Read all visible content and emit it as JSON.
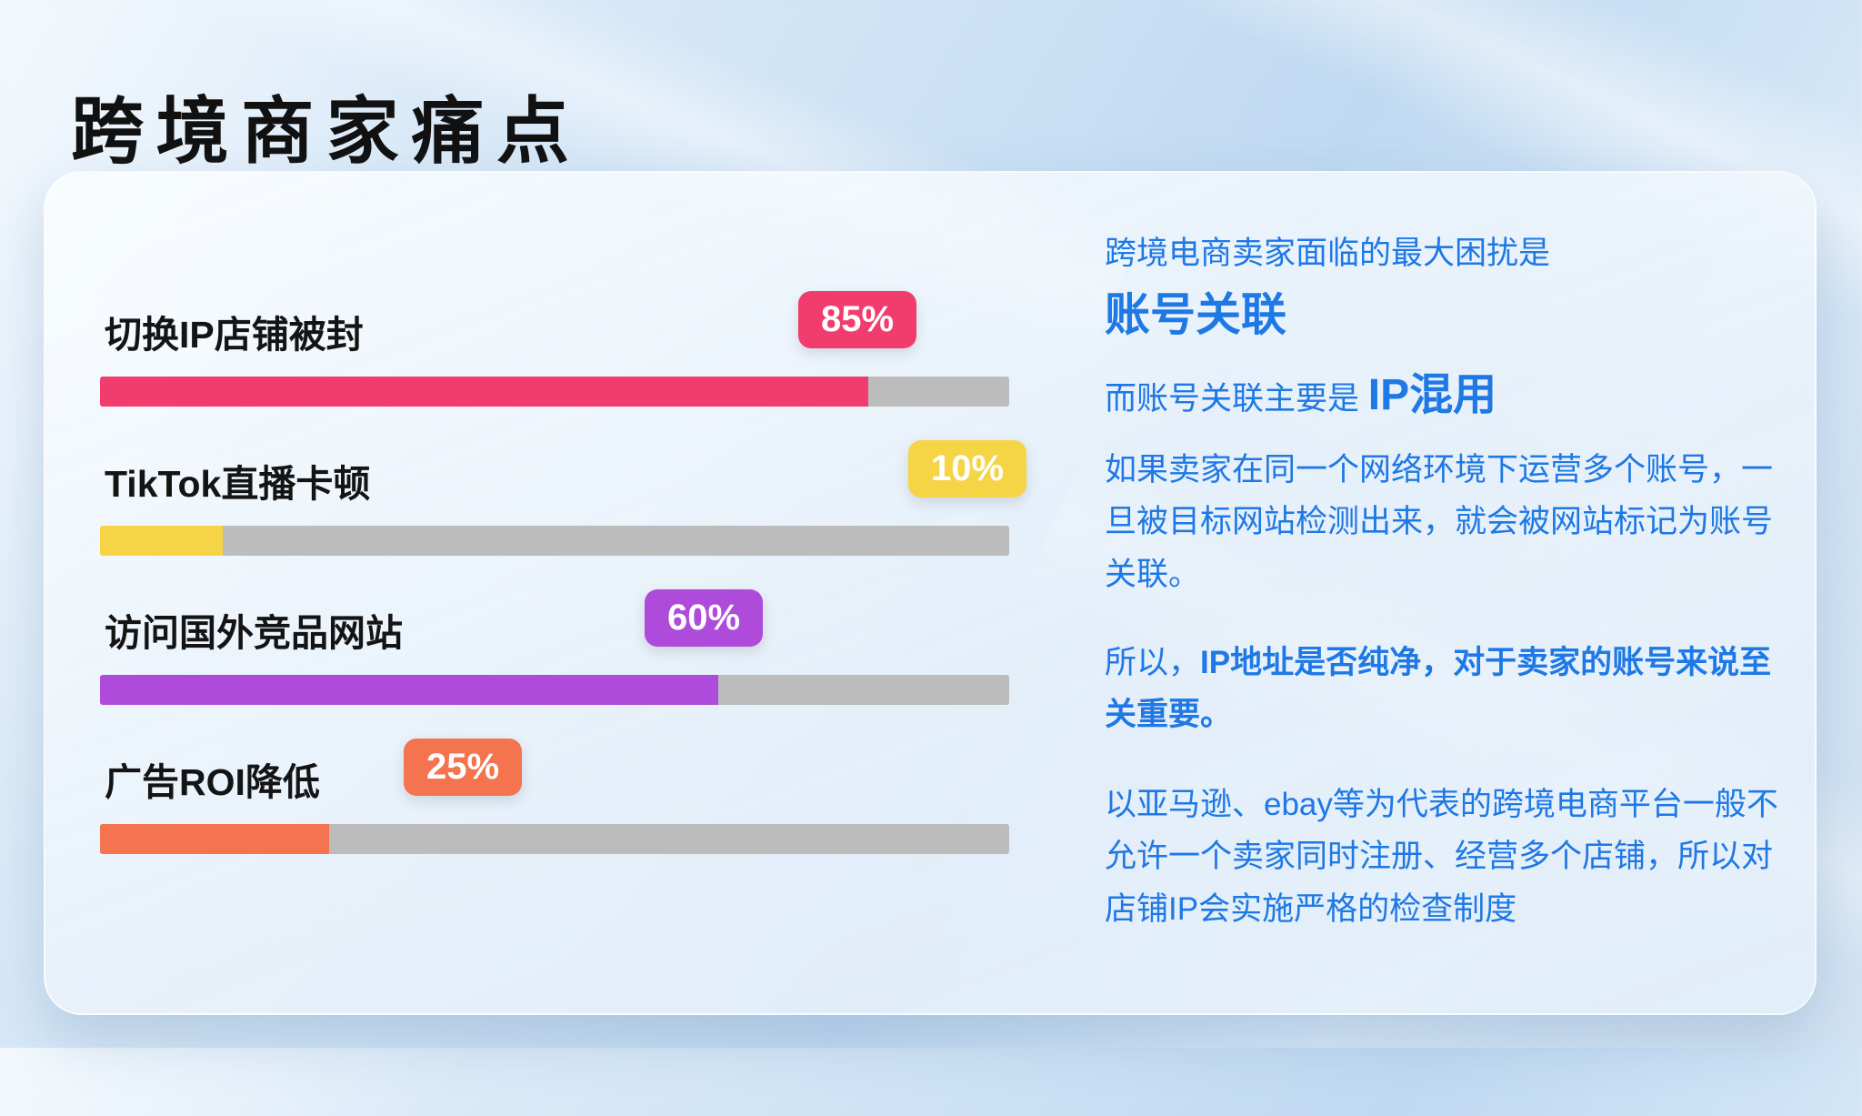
{
  "page": {
    "title": "跨境商家痛点"
  },
  "chart_data": {
    "type": "bar",
    "orientation": "horizontal",
    "title": "跨境商家痛点",
    "categories": [
      "切换IP店铺被封",
      "TikTok直播卡顿",
      "访问国外竞品网站",
      "广告ROI降低"
    ],
    "values": [
      85,
      10,
      60,
      25
    ],
    "value_labels": [
      "85%",
      "10%",
      "60%",
      "25%"
    ],
    "xlim": [
      0,
      100
    ],
    "grid": false,
    "legend": false,
    "bar_colors": [
      "#f23c6e",
      "#f5d545",
      "#af4bdb",
      "#f3744e"
    ],
    "track_color": "#bcbcbc",
    "layout_hints": {
      "fill_percent": [
        84.5,
        13.5,
        68,
        25.2
      ],
      "badge_left_percent": [
        76.8,
        88.9,
        59.9,
        33.4
      ]
    }
  },
  "info_panel": {
    "text_color": "#1e78e5",
    "intro": "跨境电商卖家面临的最大困扰是",
    "headline": "账号关联",
    "ip_line_prefix": "而账号关联主要是 ",
    "ip_line_highlight": "IP混用",
    "para_network": "如果卖家在同一个网络环境下运营多个账号，一旦被目标网站检测出来，就会被网站标记为账号关联。",
    "para_ip_prefix": "所以，",
    "para_ip_bold": "IP地址是否纯净，对于卖家的账号来说至关重要。",
    "para_platforms": "以亚马逊、ebay等为代表的跨境电商平台一般不允许一个卖家同时注册、经营多个店铺，所以对店铺IP会实施严格的检查制度"
  }
}
